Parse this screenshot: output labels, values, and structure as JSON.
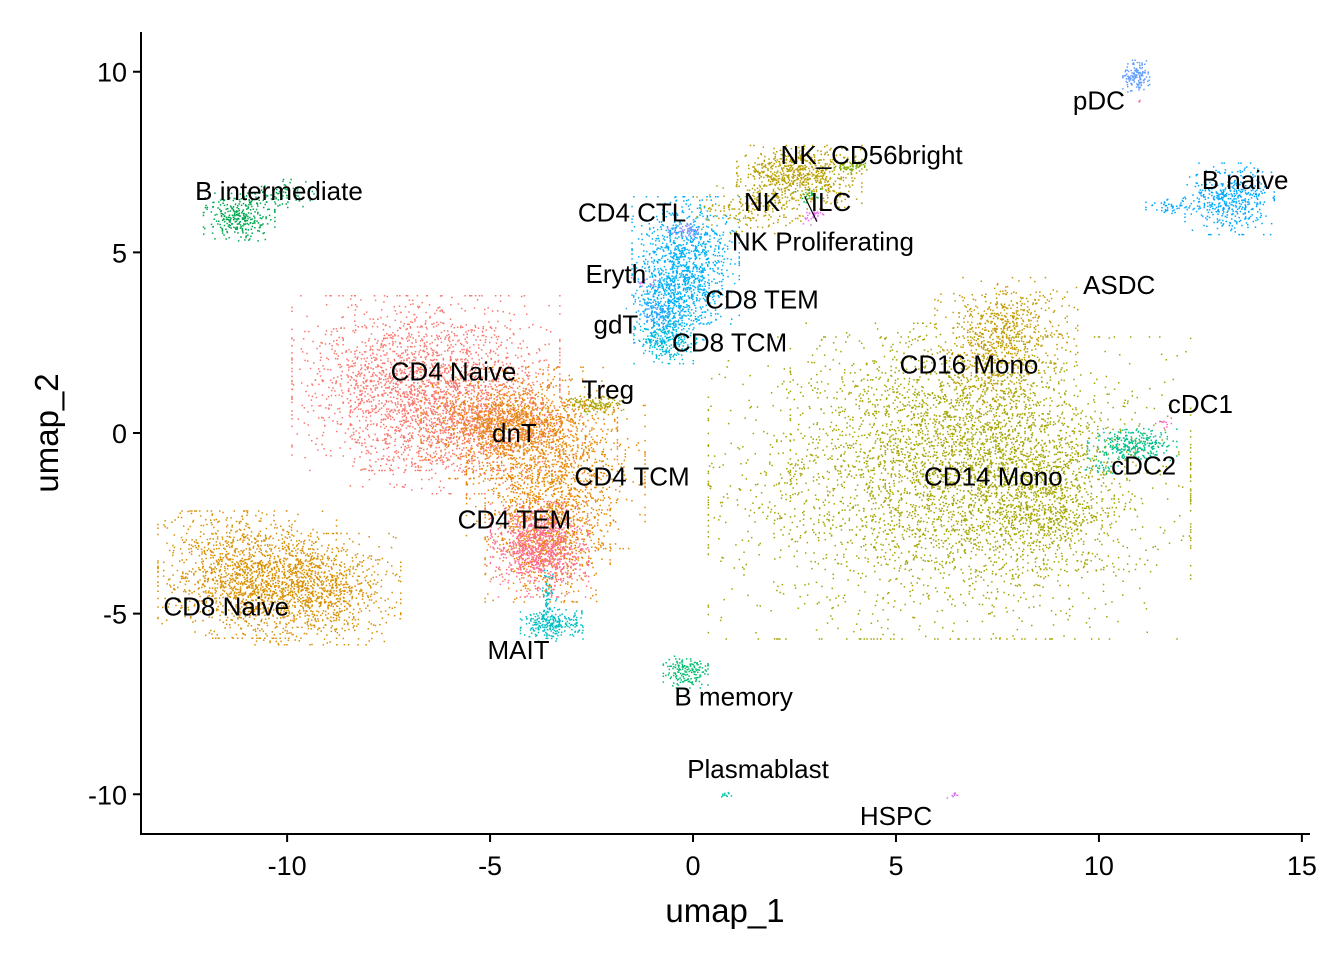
{
  "chart_data": {
    "type": "scatter",
    "title": "",
    "xlabel": "umap_1",
    "ylabel": "umap_2",
    "xlim": [
      -13.6,
      15.2
    ],
    "ylim": [
      -11.1,
      11.1
    ],
    "x_ticks": [
      -10,
      -5,
      0,
      5,
      10,
      15
    ],
    "y_ticks": [
      -10,
      -5,
      0,
      5,
      10
    ],
    "x_tick_labels": [
      "-10",
      "-5",
      "0",
      "5",
      "10",
      "15"
    ],
    "y_tick_labels": [
      "-10",
      "-5",
      "0",
      "5",
      "10"
    ],
    "grid": false,
    "legend": "none",
    "series": [
      {
        "name": "CD14 Mono",
        "color": "#A3A500",
        "x": 6.8,
        "y": -1.4,
        "n": 5200,
        "blobs": [
          [
            6.3,
            -1.5,
            2.7,
            1.9,
            0.55
          ],
          [
            5.9,
            0.2,
            1.6,
            1.3,
            0.18
          ],
          [
            7.8,
            -0.9,
            1.4,
            1.3,
            0.17
          ],
          [
            8.6,
            -2.0,
            0.8,
            1.0,
            0.1
          ]
        ]
      },
      {
        "name": "CD16 Mono",
        "color": "#C49A00",
        "x": 7.7,
        "y": 2.7,
        "n": 800,
        "blobs": [
          [
            7.7,
            3.0,
            0.8,
            0.6,
            0.6
          ],
          [
            7.4,
            2.0,
            0.5,
            0.8,
            0.4
          ]
        ]
      },
      {
        "name": "CD4 Naive",
        "color": "#F8766D",
        "x": -6.3,
        "y": 1.3,
        "n": 3000,
        "blobs": [
          [
            -6.6,
            1.4,
            1.5,
            1.1,
            0.7
          ],
          [
            -5.6,
            0.1,
            1.3,
            0.8,
            0.3
          ]
        ]
      },
      {
        "name": "CD4 TCM",
        "color": "#E58700",
        "x": -3.7,
        "y": -1.2,
        "n": 2800,
        "blobs": [
          [
            -4.3,
            0.3,
            1.1,
            0.7,
            0.35
          ],
          [
            -3.4,
            -1.2,
            1.0,
            0.9,
            0.35
          ],
          [
            -3.6,
            -2.9,
            0.7,
            0.8,
            0.3
          ]
        ]
      },
      {
        "name": "CD4 TEM",
        "color": "#FF6C91",
        "x": -3.8,
        "y": -3.2,
        "n": 900,
        "blobs": [
          [
            -3.8,
            -3.2,
            0.55,
            0.6,
            1.0
          ]
        ]
      },
      {
        "name": "dnT",
        "color": "#E88526",
        "x": -4.6,
        "y": 0.1,
        "n": 350,
        "blobs": [
          [
            -4.6,
            0.2,
            0.6,
            0.4,
            1.0
          ]
        ]
      },
      {
        "name": "CD8 Naive",
        "color": "#D89000",
        "x": -10.6,
        "y": -4.0,
        "n": 2400,
        "blobs": [
          [
            -11.0,
            -3.9,
            1.0,
            0.8,
            0.6
          ],
          [
            -9.2,
            -4.3,
            0.9,
            0.7,
            0.4
          ]
        ]
      },
      {
        "name": "CD8 TEM",
        "color": "#00B0F6",
        "x": -0.3,
        "y": 4.5,
        "n": 1400,
        "blobs": [
          [
            -0.2,
            4.8,
            0.6,
            0.8,
            0.7
          ],
          [
            -0.6,
            3.6,
            0.4,
            0.6,
            0.3
          ]
        ]
      },
      {
        "name": "CD8 TCM",
        "color": "#00BCD8",
        "x": -0.7,
        "y": 2.6,
        "n": 260,
        "blobs": [
          [
            -0.7,
            2.6,
            0.35,
            0.3,
            1.0
          ]
        ]
      },
      {
        "name": "CD4 CTL",
        "color": "#9590FF",
        "x": -0.2,
        "y": 5.6,
        "n": 50,
        "blobs": [
          [
            -0.2,
            5.6,
            0.2,
            0.1,
            1.0
          ]
        ]
      },
      {
        "name": "gdT",
        "color": "#35A2FF",
        "x": -1.0,
        "y": 3.4,
        "n": 100,
        "blobs": [
          [
            -1.0,
            3.4,
            0.3,
            0.4,
            1.0
          ]
        ]
      },
      {
        "name": "Eryth",
        "color": "#F564E3",
        "x": -1.2,
        "y": 4.2,
        "n": 12,
        "blobs": [
          [
            -1.2,
            4.2,
            0.15,
            0.15,
            1.0
          ]
        ]
      },
      {
        "name": "NK",
        "color": "#B79F00",
        "x": 2.6,
        "y": 7.0,
        "n": 900,
        "blobs": [
          [
            2.6,
            7.1,
            0.7,
            0.4,
            0.8
          ],
          [
            1.4,
            6.2,
            0.6,
            0.3,
            0.2
          ]
        ]
      },
      {
        "name": "NK_CD56bright",
        "color": "#7CAE00",
        "x": 4.0,
        "y": 7.4,
        "n": 60,
        "blobs": [
          [
            3.9,
            7.4,
            0.2,
            0.1,
            1.0
          ]
        ]
      },
      {
        "name": "NK Proliferating",
        "color": "#E76BF3",
        "x": 2.8,
        "y": 6.0,
        "n": 30,
        "blobs": [
          [
            2.9,
            6.0,
            0.15,
            0.1,
            1.0
          ]
        ]
      },
      {
        "name": "ILC",
        "color": "#00BA38",
        "x": 2.8,
        "y": 6.6,
        "n": 20,
        "blobs": [
          [
            2.8,
            6.6,
            0.15,
            0.1,
            1.0
          ]
        ]
      },
      {
        "name": "Treg",
        "color": "#ABA300",
        "x": -2.5,
        "y": 0.8,
        "n": 140,
        "blobs": [
          [
            -2.5,
            0.8,
            0.35,
            0.12,
            1.0
          ]
        ]
      },
      {
        "name": "MAIT",
        "color": "#00BFC4",
        "x": -3.5,
        "y": -5.3,
        "n": 320,
        "blobs": [
          [
            -3.5,
            -5.3,
            0.35,
            0.2,
            0.8
          ],
          [
            -3.6,
            -4.6,
            0.1,
            0.45,
            0.2
          ]
        ]
      },
      {
        "name": "B intermediate",
        "color": "#00A850",
        "x": -11.1,
        "y": 6.0,
        "n": 380,
        "blobs": [
          [
            -11.2,
            6.0,
            0.4,
            0.3,
            0.8
          ],
          [
            -10.0,
            6.6,
            0.4,
            0.2,
            0.2
          ]
        ]
      },
      {
        "name": "B naive",
        "color": "#00A9FF",
        "x": 13.2,
        "y": 6.5,
        "n": 520,
        "blobs": [
          [
            13.2,
            6.5,
            0.5,
            0.45,
            0.9
          ],
          [
            11.8,
            6.3,
            0.3,
            0.1,
            0.1
          ]
        ]
      },
      {
        "name": "B memory",
        "color": "#00BE70",
        "x": -0.2,
        "y": -6.6,
        "n": 160,
        "blobs": [
          [
            -0.2,
            -6.6,
            0.25,
            0.2,
            1.0
          ]
        ]
      },
      {
        "name": "pDC",
        "color": "#619CFF",
        "x": 10.9,
        "y": 9.9,
        "n": 140,
        "blobs": [
          [
            10.9,
            9.9,
            0.15,
            0.2,
            1.0
          ]
        ]
      },
      {
        "name": "cDC2",
        "color": "#00C08B",
        "x": 10.6,
        "y": -0.4,
        "n": 320,
        "blobs": [
          [
            10.8,
            -0.3,
            0.5,
            0.2,
            0.9
          ],
          [
            10.0,
            -0.9,
            0.25,
            0.1,
            0.1
          ]
        ]
      },
      {
        "name": "cDC1",
        "color": "#FF61C3",
        "x": 11.6,
        "y": 0.4,
        "n": 12,
        "blobs": [
          [
            11.6,
            0.35,
            0.1,
            0.1,
            1.0
          ]
        ]
      },
      {
        "name": "Plasmablast",
        "color": "#00C1A3",
        "x": 0.8,
        "y": -10.0,
        "n": 10,
        "blobs": [
          [
            0.8,
            -10.0,
            0.06,
            0.05,
            1.0
          ]
        ]
      },
      {
        "name": "HSPC",
        "color": "#DB72FB",
        "x": 6.4,
        "y": -10.0,
        "n": 10,
        "blobs": [
          [
            6.4,
            -10.0,
            0.08,
            0.06,
            1.0
          ]
        ]
      },
      {
        "name": "ASDC",
        "color": "#FF64B0",
        "x": 11.0,
        "y": 9.2,
        "n": 3,
        "blobs": [
          [
            11.0,
            9.2,
            0.03,
            0.03,
            1.0
          ]
        ]
      }
    ],
    "labels": [
      {
        "text": "pDC",
        "x": 10.0,
        "y": 9.2
      },
      {
        "text": "NK_CD56bright",
        "x": 4.4,
        "y": 7.7
      },
      {
        "text": "B naive",
        "x": 13.6,
        "y": 7.0
      },
      {
        "text": "B intermediate",
        "x": -10.2,
        "y": 6.7
      },
      {
        "text": "CD4 CTL",
        "x": -1.5,
        "y": 6.1
      },
      {
        "text": "NK",
        "x": 1.7,
        "y": 6.4
      },
      {
        "text": "ILC",
        "x": 3.4,
        "y": 6.4
      },
      {
        "text": "NK Proliferating",
        "x": 3.2,
        "y": 5.3
      },
      {
        "text": "Eryth",
        "x": -1.9,
        "y": 4.4
      },
      {
        "text": "CD8 TEM",
        "x": 1.7,
        "y": 3.7
      },
      {
        "text": "ASDC",
        "x": 10.5,
        "y": 4.1
      },
      {
        "text": "gdT",
        "x": -1.9,
        "y": 3.0
      },
      {
        "text": "CD8 TCM",
        "x": 0.9,
        "y": 2.5
      },
      {
        "text": "CD4 Naive",
        "x": -5.9,
        "y": 1.7
      },
      {
        "text": "CD16 Mono",
        "x": 6.8,
        "y": 1.9
      },
      {
        "text": "Treg",
        "x": -2.1,
        "y": 1.2
      },
      {
        "text": "cDC1",
        "x": 12.5,
        "y": 0.8
      },
      {
        "text": "dnT",
        "x": -4.4,
        "y": 0.0
      },
      {
        "text": "cDC2",
        "x": 11.1,
        "y": -0.9
      },
      {
        "text": "CD4 TCM",
        "x": -1.5,
        "y": -1.2
      },
      {
        "text": "CD14 Mono",
        "x": 7.4,
        "y": -1.2
      },
      {
        "text": "CD4 TEM",
        "x": -4.4,
        "y": -2.4
      },
      {
        "text": "CD8 Naive",
        "x": -11.5,
        "y": -4.8
      },
      {
        "text": "MAIT",
        "x": -4.3,
        "y": -6.0
      },
      {
        "text": "B memory",
        "x": 1.0,
        "y": -7.3
      },
      {
        "text": "Plasmablast",
        "x": 1.6,
        "y": -9.3
      },
      {
        "text": "HSPC",
        "x": 5.0,
        "y": -10.6
      }
    ]
  }
}
